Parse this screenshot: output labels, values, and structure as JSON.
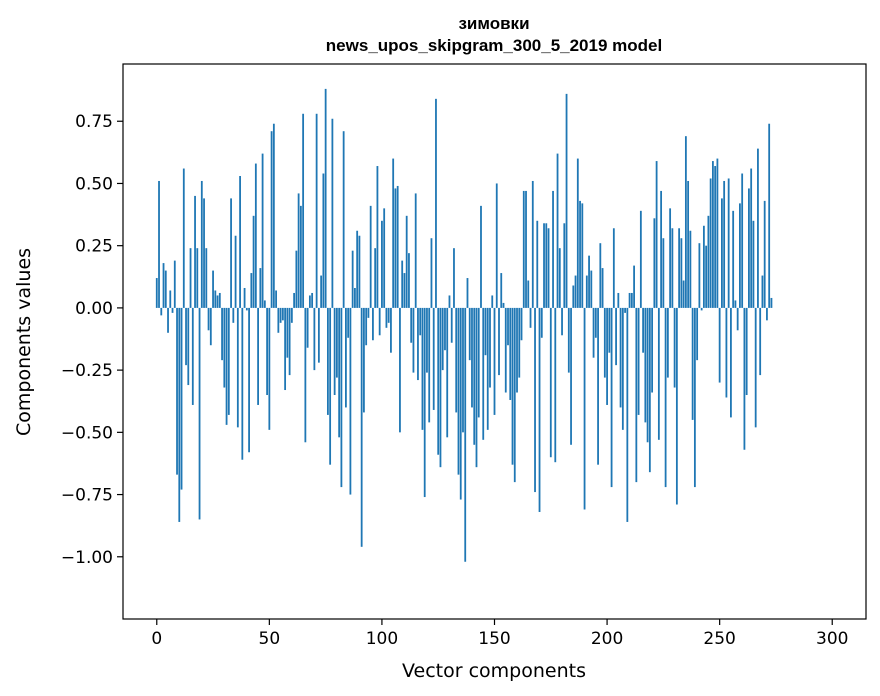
{
  "chart_data": {
    "type": "bar",
    "title": "зимовки",
    "subtitle": "news_upos_skipgram_300_5_2019 model",
    "xlabel": "Vector components",
    "ylabel": "Components values",
    "xlim": [
      -15,
      315
    ],
    "ylim": [
      -1.25,
      0.98
    ],
    "xticks": [
      0,
      50,
      100,
      150,
      200,
      250,
      300
    ],
    "xtick_labels": [
      "0",
      "50",
      "100",
      "150",
      "200",
      "250",
      "300"
    ],
    "yticks": [
      -1.0,
      -0.75,
      -0.5,
      -0.25,
      0.0,
      0.25,
      0.5,
      0.75
    ],
    "ytick_labels": [
      "−1.00",
      "−0.75",
      "−0.50",
      "−0.25",
      "0.00",
      "0.25",
      "0.50",
      "0.75"
    ],
    "bar_color": "#1f77b4",
    "values": [
      0.12,
      0.51,
      -0.03,
      0.18,
      0.15,
      -0.1,
      0.07,
      -0.02,
      0.19,
      -0.67,
      -0.86,
      -0.73,
      0.56,
      -0.23,
      -0.31,
      0.24,
      -0.39,
      0.45,
      0.24,
      -0.85,
      0.51,
      0.44,
      0.24,
      -0.09,
      -0.15,
      0.15,
      0.07,
      0.05,
      0.06,
      -0.21,
      -0.32,
      -0.47,
      -0.43,
      0.44,
      -0.06,
      0.29,
      -0.48,
      0.53,
      -0.61,
      0.08,
      -0.01,
      -0.58,
      0.14,
      0.37,
      0.58,
      -0.39,
      0.16,
      0.62,
      0.03,
      -0.35,
      -0.49,
      0.71,
      0.74,
      0.07,
      -0.1,
      -0.06,
      -0.05,
      -0.33,
      -0.2,
      -0.27,
      -0.06,
      0.06,
      0.23,
      0.46,
      0.41,
      0.78,
      -0.54,
      -0.16,
      0.05,
      0.06,
      -0.25,
      0.78,
      -0.22,
      0.13,
      0.54,
      0.88,
      -0.43,
      -0.63,
      0.76,
      -0.35,
      -0.28,
      -0.52,
      -0.72,
      0.71,
      -0.4,
      -0.12,
      -0.75,
      0.23,
      0.08,
      0.31,
      0.29,
      -0.96,
      -0.42,
      -0.15,
      -0.04,
      0.41,
      -0.13,
      0.24,
      0.57,
      -0.11,
      0.35,
      0.4,
      -0.08,
      -0.06,
      -0.18,
      0.6,
      0.48,
      0.49,
      -0.5,
      0.19,
      0.14,
      0.37,
      0.22,
      -0.14,
      -0.26,
      0.46,
      -0.29,
      -0.11,
      -0.49,
      -0.76,
      -0.26,
      -0.46,
      0.28,
      -0.41,
      0.84,
      -0.59,
      -0.64,
      -0.25,
      -0.17,
      -0.52,
      0.05,
      -0.14,
      0.24,
      -0.42,
      -0.67,
      -0.77,
      -0.5,
      -1.02,
      0.12,
      -0.21,
      -0.4,
      -0.55,
      -0.64,
      -0.44,
      0.41,
      -0.53,
      -0.19,
      -0.49,
      -0.32,
      0.05,
      -0.43,
      0.5,
      -0.27,
      0.14,
      0.02,
      -0.34,
      -0.15,
      -0.37,
      -0.63,
      -0.7,
      -0.34,
      -0.28,
      -0.13,
      0.47,
      0.47,
      0.11,
      -0.08,
      0.51,
      -0.74,
      0.35,
      -0.82,
      -0.12,
      0.34,
      0.34,
      0.32,
      -0.6,
      0.47,
      -0.62,
      0.62,
      0.24,
      -0.11,
      0.34,
      0.86,
      -0.26,
      -0.55,
      0.09,
      0.13,
      0.6,
      0.43,
      0.42,
      -0.81,
      0.13,
      0.21,
      0.15,
      -0.2,
      -0.12,
      -0.63,
      0.26,
      0.16,
      -0.28,
      -0.39,
      -0.18,
      -0.72,
      0.32,
      -0.23,
      0.06,
      -0.4,
      -0.49,
      -0.02,
      -0.86,
      0.06,
      0.06,
      0.17,
      -0.7,
      -0.43,
      0.39,
      -0.18,
      -0.46,
      -0.54,
      -0.66,
      -0.34,
      0.36,
      0.59,
      -0.53,
      0.47,
      0.28,
      -0.72,
      -0.28,
      0.4,
      0.32,
      -0.32,
      -0.79,
      0.32,
      0.28,
      0.11,
      0.69,
      0.51,
      0.31,
      -0.45,
      -0.72,
      -0.21,
      0.26,
      -0.01,
      0.33,
      0.25,
      0.37,
      0.52,
      0.59,
      0.57,
      0.6,
      -0.3,
      0.44,
      0.51,
      -0.36,
      0.52,
      -0.44,
      0.39,
      0.03,
      -0.09,
      0.42,
      0.54,
      -0.57,
      -0.35,
      0.48,
      0.56,
      0.35,
      -0.48,
      0.64,
      -0.27,
      0.13,
      0.43,
      -0.05,
      0.74,
      0.04
    ]
  }
}
